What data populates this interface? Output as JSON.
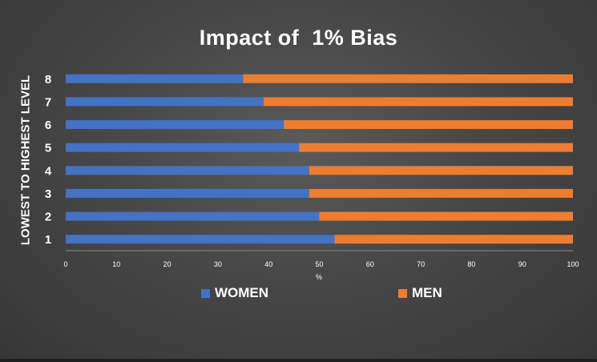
{
  "chart_data": {
    "type": "bar",
    "orientation": "horizontal",
    "stacked": true,
    "title": "Impact of  1% Bias",
    "ylabel": "LOWEST TO HIGHEST LEVEL",
    "xlabel": "%",
    "categories": [
      "1",
      "2",
      "3",
      "4",
      "5",
      "6",
      "7",
      "8"
    ],
    "series": [
      {
        "name": "WOMEN",
        "color": "#4472c4",
        "values": [
          53,
          50,
          48,
          48,
          46,
          43,
          39,
          35
        ]
      },
      {
        "name": "MEN",
        "color": "#ed7d31",
        "values": [
          47,
          50,
          52,
          52,
          54,
          57,
          61,
          65
        ]
      }
    ],
    "xlim": [
      0,
      100
    ],
    "xticks": [
      0,
      10,
      20,
      30,
      40,
      50,
      60,
      70,
      80,
      90,
      100
    ],
    "grid": false,
    "legend_position": "bottom"
  }
}
